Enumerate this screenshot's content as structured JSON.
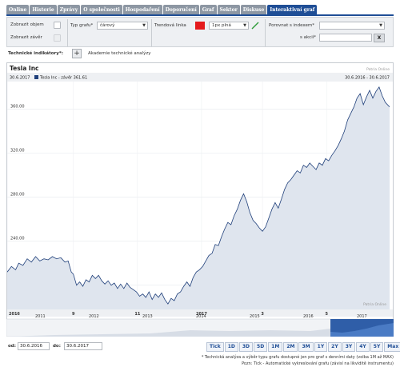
{
  "tabs": [
    {
      "label": "Online",
      "active": false
    },
    {
      "label": "Historie",
      "active": false
    },
    {
      "label": "Zprávy",
      "active": false
    },
    {
      "label": "O společnosti",
      "active": false
    },
    {
      "label": "Hospodaření",
      "active": false
    },
    {
      "label": "Doporučení",
      "active": false
    },
    {
      "label": "Graf",
      "active": false
    },
    {
      "label": "Sektor",
      "active": false
    },
    {
      "label": "Diskuse",
      "active": false
    },
    {
      "label": "Interaktivní graf",
      "active": true
    }
  ],
  "settings": {
    "show_volume": "Zobrazit objem",
    "show_close": "Zobrazit závěr",
    "chart_type_label": "Typ grafu*",
    "chart_type_value": "čárový",
    "trend_label": "Trendová linka",
    "trend_color": "#e41a1c",
    "trend_width_value": "1px plná",
    "compare_index_label": "Porovnat s indexem*",
    "compare_index_value": "",
    "compare_stock_label": "s akcií*",
    "clear_label": "X"
  },
  "tech": {
    "label": "Technické indikátory*:",
    "add": "+",
    "academy": "Akademie technické analýzy"
  },
  "chart_data": {
    "type": "area",
    "title": "Tesla Inc",
    "watermark": "Patria Online",
    "range_top": "30.6.2016 - 30.6.2017",
    "legend_date": "30.6.2017",
    "legend_series": "Tesla Inc - závěr 361.61",
    "line_color": "#1f3f7a",
    "fill_color": "#dfe5ee",
    "ylim": [
      178,
      385
    ],
    "yticks": [
      200,
      240,
      280,
      320,
      360
    ],
    "ytick_labels": [
      "200.00",
      "240.00",
      "280.00",
      "320.00",
      "360.00"
    ],
    "xlim": [
      0,
      364
    ],
    "xticks": [
      {
        "label": "2016",
        "d": 0
      },
      {
        "label": "9",
        "d": 63
      },
      {
        "label": "11",
        "d": 124
      },
      {
        "label": "2017",
        "d": 185
      },
      {
        "label": "3",
        "d": 243
      },
      {
        "label": "5",
        "d": 304
      }
    ],
    "series": [
      {
        "d": 0,
        "v": 212
      },
      {
        "d": 4,
        "v": 217
      },
      {
        "d": 8,
        "v": 214
      },
      {
        "d": 11,
        "v": 220
      },
      {
        "d": 15,
        "v": 218
      },
      {
        "d": 19,
        "v": 224
      },
      {
        "d": 23,
        "v": 221
      },
      {
        "d": 27,
        "v": 226
      },
      {
        "d": 31,
        "v": 222
      },
      {
        "d": 35,
        "v": 224
      },
      {
        "d": 39,
        "v": 223
      },
      {
        "d": 43,
        "v": 226
      },
      {
        "d": 47,
        "v": 224
      },
      {
        "d": 51,
        "v": 225
      },
      {
        "d": 55,
        "v": 221
      },
      {
        "d": 58,
        "v": 222
      },
      {
        "d": 61,
        "v": 212
      },
      {
        "d": 63,
        "v": 210
      },
      {
        "d": 66,
        "v": 200
      },
      {
        "d": 69,
        "v": 203
      },
      {
        "d": 72,
        "v": 199
      },
      {
        "d": 75,
        "v": 205
      },
      {
        "d": 78,
        "v": 203
      },
      {
        "d": 81,
        "v": 209
      },
      {
        "d": 84,
        "v": 206
      },
      {
        "d": 87,
        "v": 209
      },
      {
        "d": 90,
        "v": 204
      },
      {
        "d": 93,
        "v": 201
      },
      {
        "d": 96,
        "v": 204
      },
      {
        "d": 99,
        "v": 200
      },
      {
        "d": 102,
        "v": 202
      },
      {
        "d": 105,
        "v": 197
      },
      {
        "d": 108,
        "v": 201
      },
      {
        "d": 111,
        "v": 197
      },
      {
        "d": 114,
        "v": 202
      },
      {
        "d": 117,
        "v": 198
      },
      {
        "d": 120,
        "v": 196
      },
      {
        "d": 123,
        "v": 194
      },
      {
        "d": 126,
        "v": 190
      },
      {
        "d": 129,
        "v": 192
      },
      {
        "d": 132,
        "v": 189
      },
      {
        "d": 135,
        "v": 194
      },
      {
        "d": 138,
        "v": 187
      },
      {
        "d": 141,
        "v": 192
      },
      {
        "d": 144,
        "v": 189
      },
      {
        "d": 147,
        "v": 193
      },
      {
        "d": 150,
        "v": 187
      },
      {
        "d": 153,
        "v": 183
      },
      {
        "d": 156,
        "v": 188
      },
      {
        "d": 159,
        "v": 186
      },
      {
        "d": 162,
        "v": 192
      },
      {
        "d": 165,
        "v": 194
      },
      {
        "d": 168,
        "v": 199
      },
      {
        "d": 171,
        "v": 203
      },
      {
        "d": 174,
        "v": 199
      },
      {
        "d": 177,
        "v": 207
      },
      {
        "d": 180,
        "v": 212
      },
      {
        "d": 183,
        "v": 214
      },
      {
        "d": 186,
        "v": 217
      },
      {
        "d": 189,
        "v": 222
      },
      {
        "d": 192,
        "v": 227
      },
      {
        "d": 195,
        "v": 229
      },
      {
        "d": 198,
        "v": 237
      },
      {
        "d": 201,
        "v": 236
      },
      {
        "d": 204,
        "v": 244
      },
      {
        "d": 207,
        "v": 251
      },
      {
        "d": 210,
        "v": 257
      },
      {
        "d": 213,
        "v": 255
      },
      {
        "d": 216,
        "v": 263
      },
      {
        "d": 219,
        "v": 269
      },
      {
        "d": 222,
        "v": 277
      },
      {
        "d": 225,
        "v": 283
      },
      {
        "d": 228,
        "v": 276
      },
      {
        "d": 231,
        "v": 266
      },
      {
        "d": 234,
        "v": 259
      },
      {
        "d": 237,
        "v": 256
      },
      {
        "d": 240,
        "v": 252
      },
      {
        "d": 243,
        "v": 249
      },
      {
        "d": 246,
        "v": 253
      },
      {
        "d": 249,
        "v": 261
      },
      {
        "d": 252,
        "v": 269
      },
      {
        "d": 255,
        "v": 275
      },
      {
        "d": 258,
        "v": 270
      },
      {
        "d": 261,
        "v": 278
      },
      {
        "d": 264,
        "v": 287
      },
      {
        "d": 267,
        "v": 293
      },
      {
        "d": 270,
        "v": 296
      },
      {
        "d": 273,
        "v": 300
      },
      {
        "d": 276,
        "v": 304
      },
      {
        "d": 279,
        "v": 302
      },
      {
        "d": 282,
        "v": 309
      },
      {
        "d": 285,
        "v": 307
      },
      {
        "d": 288,
        "v": 311
      },
      {
        "d": 291,
        "v": 308
      },
      {
        "d": 294,
        "v": 305
      },
      {
        "d": 297,
        "v": 311
      },
      {
        "d": 300,
        "v": 309
      },
      {
        "d": 303,
        "v": 315
      },
      {
        "d": 306,
        "v": 313
      },
      {
        "d": 309,
        "v": 318
      },
      {
        "d": 312,
        "v": 322
      },
      {
        "d": 315,
        "v": 327
      },
      {
        "d": 318,
        "v": 333
      },
      {
        "d": 321,
        "v": 340
      },
      {
        "d": 324,
        "v": 350
      },
      {
        "d": 327,
        "v": 356
      },
      {
        "d": 330,
        "v": 362
      },
      {
        "d": 333,
        "v": 370
      },
      {
        "d": 336,
        "v": 374
      },
      {
        "d": 339,
        "v": 364
      },
      {
        "d": 342,
        "v": 371
      },
      {
        "d": 345,
        "v": 377
      },
      {
        "d": 348,
        "v": 370
      },
      {
        "d": 351,
        "v": 376
      },
      {
        "d": 354,
        "v": 380
      },
      {
        "d": 357,
        "v": 372
      },
      {
        "d": 360,
        "v": 366
      },
      {
        "d": 364,
        "v": 362
      }
    ],
    "navigator_years": [
      "2011",
      "2012",
      "2013",
      "2014",
      "2015",
      "2016",
      "2017"
    ]
  },
  "bottom": {
    "from_label": "od:",
    "from_value": "30.6.2016",
    "to_label": "do:",
    "to_value": "30.6.2017",
    "periods": [
      "Tick",
      "1D",
      "3D",
      "5D",
      "1M",
      "2M",
      "3M",
      "1Y",
      "2Y",
      "3Y",
      "4Y",
      "5Y",
      "Max"
    ],
    "note1": "* Technická analýza a výběr typu grafu dostupné jen pro graf s denními daty (volba 1M až MAX)",
    "note2": "Pozn: Tick - Automatické vykreslování grafu (závisí na likviditě instrumentu)"
  }
}
